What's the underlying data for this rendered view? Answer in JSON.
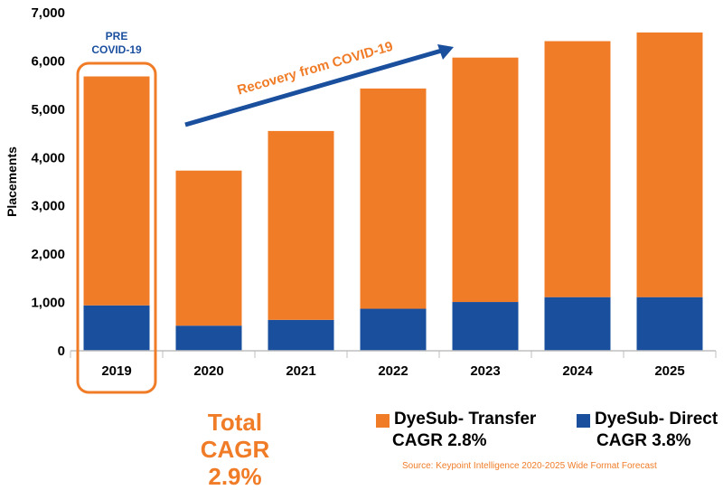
{
  "chart_data": {
    "type": "bar",
    "stacked": true,
    "categories": [
      "2019",
      "2020",
      "2021",
      "2022",
      "2023",
      "2024",
      "2025"
    ],
    "series": [
      {
        "name": "DyeSub- Direct",
        "color": "#1a4f9e",
        "values": [
          940,
          520,
          640,
          870,
          1010,
          1110,
          1110
        ]
      },
      {
        "name": "DyeSub- Transfer",
        "color": "#f07c28",
        "values": [
          4740,
          3210,
          3910,
          4560,
          5060,
          5300,
          5480
        ]
      }
    ],
    "ylabel": "Placements",
    "ylim": [
      0,
      7000
    ],
    "yticks": [
      "0",
      "1,000",
      "2,000",
      "3,000",
      "4,000",
      "5,000",
      "6,000",
      "7,000"
    ],
    "yticks_values": [
      0,
      1000,
      2000,
      3000,
      4000,
      5000,
      6000,
      7000
    ],
    "grid": false,
    "annotations": {
      "pre_covid": [
        "PRE",
        "COVID-19"
      ],
      "recovery": "Recovery from COVID-19"
    },
    "highlight_category": "2019"
  },
  "legend": {
    "transfer_label": "DyeSub- Transfer",
    "transfer_cagr": "CAGR 2.8%",
    "direct_label": "DyeSub- Direct",
    "direct_cagr": "CAGR 3.8%"
  },
  "total_cagr": {
    "title": "Total CAGR",
    "value": "2.9%"
  },
  "source": "Source: Keypoint Intelligence 2020-2025 Wide Format Forecast",
  "colors": {
    "orange": "#f07c28",
    "blue": "#1a4f9e",
    "axis": "#bfbfbf"
  }
}
